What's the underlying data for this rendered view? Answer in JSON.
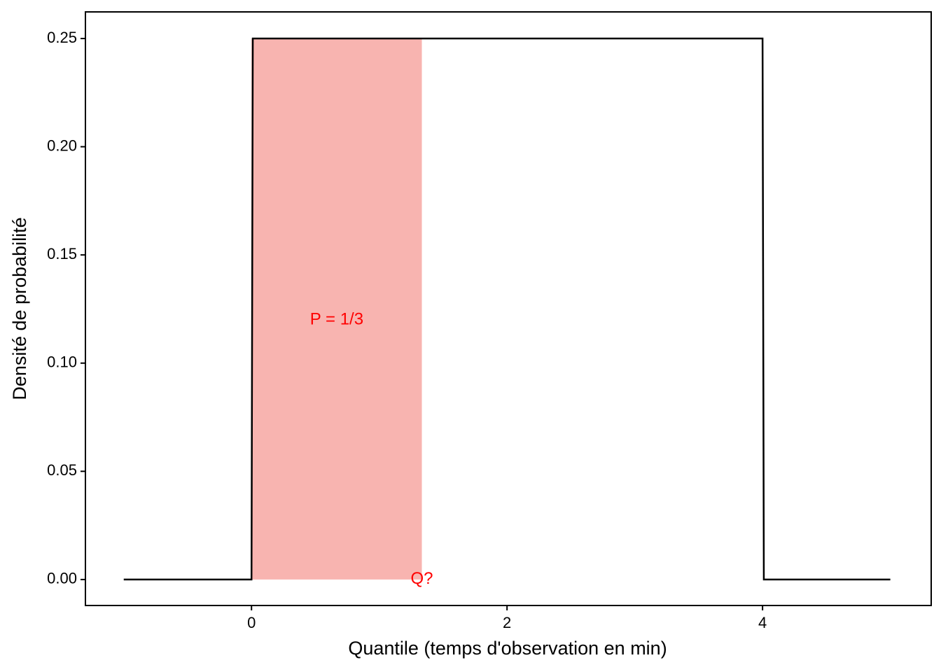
{
  "chart_data": {
    "type": "line",
    "xlabel": "Quantile (temps d'observation en min)",
    "ylabel": "Densité de probabilité",
    "series": [
      {
        "x": [
          -1,
          0,
          0.01,
          4,
          4.01,
          5
        ],
        "values": [
          0,
          0,
          0.25,
          0.25,
          0,
          0
        ],
        "color": "#000000"
      }
    ],
    "shaded_region": {
      "x": [
        0,
        1.3333
      ],
      "values": [
        0.25,
        0.25
      ],
      "color": "#f8b4b0"
    },
    "annotations": [
      {
        "text": "P = 1/3",
        "x": 0.667,
        "y": 0.12,
        "color": "#ff0000"
      },
      {
        "text": "Q?",
        "x": 1.3333,
        "y": 0,
        "color": "#ff0000"
      }
    ],
    "xlim": [
      -1.3,
      5.32
    ],
    "ylim": [
      -0.012,
      0.2623
    ],
    "xticks": [
      0,
      2,
      4
    ],
    "yticks": [
      {
        "value": 0,
        "label": "0.00"
      },
      {
        "value": 0.05,
        "label": "0.05"
      },
      {
        "value": 0.1,
        "label": "0.10"
      },
      0.15,
      {
        "value": 0.2,
        "label": "0.20"
      },
      0.25
    ]
  }
}
